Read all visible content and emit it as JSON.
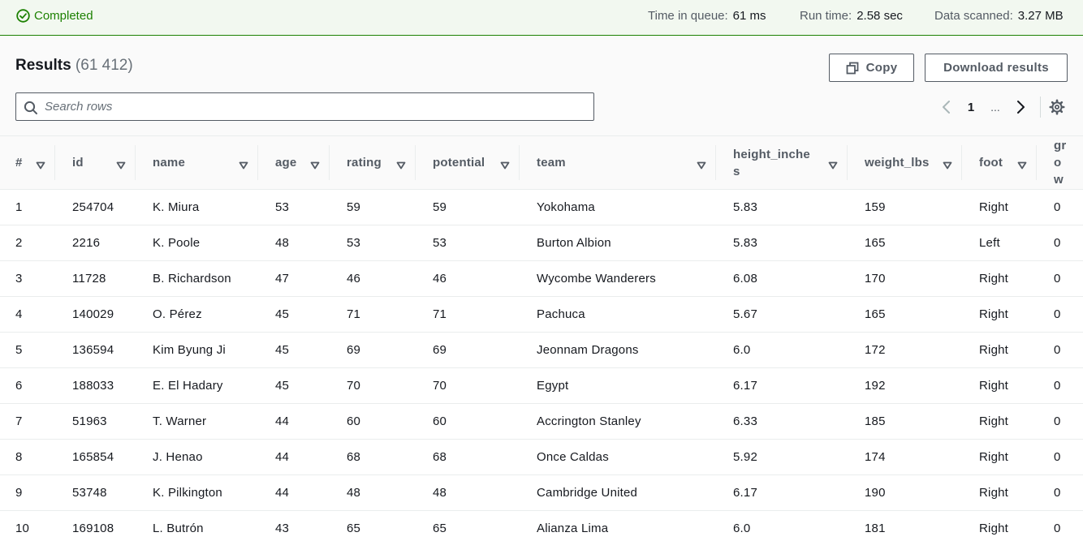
{
  "status": {
    "label": "Completed",
    "color": "#1d8102",
    "icon": "check-circle-icon",
    "metrics": [
      {
        "key": "queue",
        "label": "Time in queue:",
        "value": "61 ms"
      },
      {
        "key": "run",
        "label": "Run time:",
        "value": "2.58 sec"
      },
      {
        "key": "scanned",
        "label": "Data scanned:",
        "value": "3.27 MB"
      }
    ]
  },
  "results": {
    "title": "Results",
    "count": "(61 412)",
    "copy_label": "Copy",
    "download_label": "Download results",
    "search_placeholder": "Search rows",
    "search_value": "",
    "pagination": {
      "current_page": "1",
      "ellipsis": "..."
    }
  },
  "table": {
    "columns": [
      "#",
      "id",
      "name",
      "age",
      "rating",
      "potential",
      "team",
      "height_inches",
      "weight_lbs",
      "foot",
      "grow"
    ],
    "rows": [
      [
        "1",
        "254704",
        "K. Miura",
        "53",
        "59",
        "59",
        "Yokohama",
        "5.83",
        "159",
        "Right",
        "0"
      ],
      [
        "2",
        "2216",
        "K. Poole",
        "48",
        "53",
        "53",
        "Burton Albion",
        "5.83",
        "165",
        "Left",
        "0"
      ],
      [
        "3",
        "11728",
        "B. Richardson",
        "47",
        "46",
        "46",
        "Wycombe Wanderers",
        "6.08",
        "170",
        "Right",
        "0"
      ],
      [
        "4",
        "140029",
        "O. Pérez",
        "45",
        "71",
        "71",
        "Pachuca",
        "5.67",
        "165",
        "Right",
        "0"
      ],
      [
        "5",
        "136594",
        "Kim Byung Ji",
        "45",
        "69",
        "69",
        "Jeonnam Dragons",
        "6.0",
        "172",
        "Right",
        "0"
      ],
      [
        "6",
        "188033",
        "E. El Hadary",
        "45",
        "70",
        "70",
        "Egypt",
        "6.17",
        "192",
        "Right",
        "0"
      ],
      [
        "7",
        "51963",
        "T. Warner",
        "44",
        "60",
        "60",
        "Accrington Stanley",
        "6.33",
        "185",
        "Right",
        "0"
      ],
      [
        "8",
        "165854",
        "J. Henao",
        "44",
        "68",
        "68",
        "Once Caldas",
        "5.92",
        "174",
        "Right",
        "0"
      ],
      [
        "9",
        "53748",
        "K. Pilkington",
        "44",
        "48",
        "48",
        "Cambridge United",
        "6.17",
        "190",
        "Right",
        "0"
      ],
      [
        "10",
        "169108",
        "L. Butrón",
        "43",
        "65",
        "65",
        "Alianza Lima",
        "6.0",
        "181",
        "Right",
        "0"
      ]
    ]
  },
  "colors": {
    "success": "#1d8102",
    "text": "#16191f",
    "muted": "#545b64",
    "border": "#eaeded"
  }
}
